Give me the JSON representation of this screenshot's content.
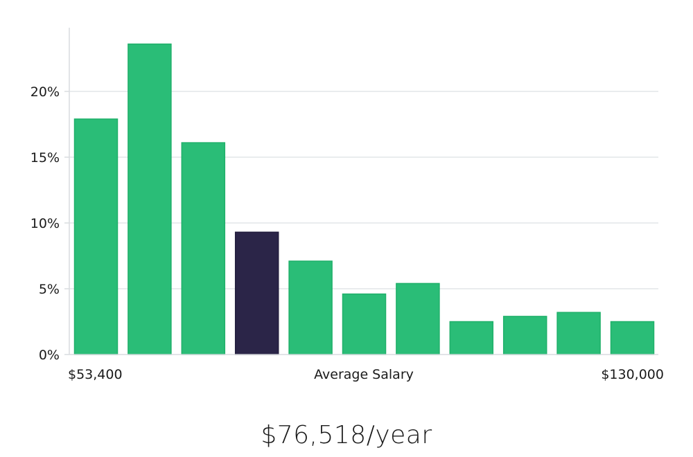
{
  "chart_data": {
    "type": "bar",
    "title": "",
    "xlabel": "Average Salary",
    "ylabel": "",
    "x_min_label": "$53,400",
    "x_max_label": "$130,000",
    "ylim": [
      0,
      25
    ],
    "yticks": [
      0,
      5,
      10,
      15,
      20
    ],
    "ytick_labels": [
      "0%",
      "5%",
      "10%",
      "15%",
      "20%"
    ],
    "values": [
      17.9,
      23.6,
      16.1,
      9.3,
      7.1,
      4.6,
      5.4,
      2.5,
      2.9,
      3.2,
      2.5
    ],
    "highlight_index": 3,
    "grid": true
  },
  "colors": {
    "bar": "#2abd77",
    "bar_stroke": "#20b06a",
    "highlight": "#2b2548",
    "grid": "#e2e5e8",
    "axis": "#d9dcdf",
    "text": "#1a1a1a"
  },
  "summary": {
    "average_salary_text": "$76,518/year"
  }
}
